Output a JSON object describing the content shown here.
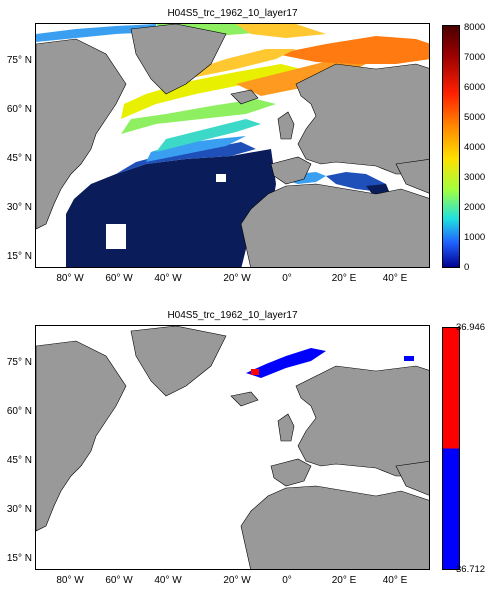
{
  "maps": [
    {
      "title": "H04S5_trc_1962_10_layer17",
      "lat_labels": [
        "75° N",
        "60° N",
        "45° N",
        "30° N",
        "15° N"
      ],
      "lon_labels": [
        "80° W",
        "60° W",
        "40° W",
        "20° W",
        "0°",
        "20° E",
        "40° E"
      ],
      "colorbar": {
        "type": "continuous-jet",
        "ticks": [
          "8000",
          "7000",
          "6000",
          "5000",
          "4000",
          "3000",
          "2000",
          "1000",
          "0"
        ],
        "min": 0,
        "max": 8000
      },
      "colors": {
        "land": "#999999",
        "deep": "#0a1d5a",
        "mid": "#e8f000",
        "high": "#ff7a10"
      }
    },
    {
      "title": "H04S5_trc_1962_10_layer17",
      "lat_labels": [
        "75° N",
        "60° N",
        "45° N",
        "30° N",
        "15° N"
      ],
      "lon_labels": [
        "80° W",
        "60° W",
        "40° W",
        "20° W",
        "0°",
        "20° E",
        "40° E"
      ],
      "colorbar": {
        "type": "two-color",
        "top_label": "36.946",
        "bottom_label": "36.712",
        "colors": [
          "#ff0000",
          "#0000ff"
        ]
      },
      "colors": {
        "land": "#999999",
        "patch": "#0000ff"
      }
    }
  ]
}
